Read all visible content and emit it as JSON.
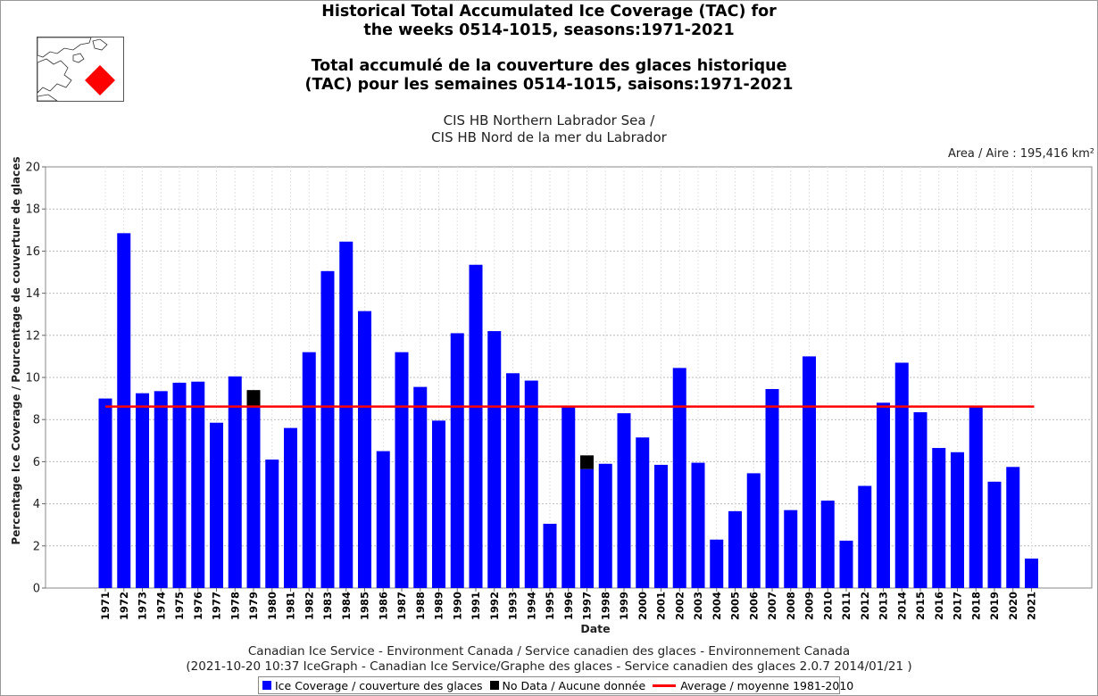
{
  "header": {
    "title_en_line1": "Historical Total Accumulated Ice Coverage (TAC) for",
    "title_en_line2": "the weeks 0514-1015, seasons:1971-2021",
    "title_fr_line1": "Total accumulé de la couverture des glaces historique",
    "title_fr_line2": "(TAC) pour les semaines 0514-1015, saisons:1971-2021",
    "subtitle_line1": "CIS HB Northern Labrador Sea /",
    "subtitle_line2": "CIS HB Nord de la mer du Labrador",
    "area_text": "Area / Aire : 195,416 km²"
  },
  "footer": {
    "line1": "Canadian Ice Service - Environment Canada / Service canadien des glaces - Environnement Canada",
    "line2": "(2021-10-20 10:37 IceGraph - Canadian Ice Service/Graphe des glaces - Service canadien des glaces 2.0.7 2014/01/21 )"
  },
  "legend": {
    "ice": "Ice Coverage / couverture des glaces",
    "nodata": "No Data / Aucune donnée",
    "average": "Average / moyenne 1981-2010"
  },
  "colors": {
    "ice": "#0000ff",
    "nodata": "#000000",
    "average": "#ff0000",
    "grid": "#bbbbbb",
    "map_marker": "#ff0000"
  },
  "chart_data": {
    "type": "bar",
    "xlabel": "Date",
    "ylabel": "Percentage Ice Coverage / Pourcentage de couverture de glaces",
    "ylim": [
      0,
      20
    ],
    "yticks": [
      0,
      2,
      4,
      6,
      8,
      10,
      12,
      14,
      16,
      18,
      20
    ],
    "grid": true,
    "categories": [
      "1971",
      "1972",
      "1973",
      "1974",
      "1975",
      "1976",
      "1977",
      "1978",
      "1979",
      "1980",
      "1981",
      "1982",
      "1983",
      "1984",
      "1985",
      "1986",
      "1987",
      "1988",
      "1989",
      "1990",
      "1991",
      "1992",
      "1993",
      "1994",
      "1995",
      "1996",
      "1997",
      "1998",
      "1999",
      "2000",
      "2001",
      "2002",
      "2003",
      "2004",
      "2005",
      "2006",
      "2007",
      "2008",
      "2009",
      "2010",
      "2011",
      "2012",
      "2013",
      "2014",
      "2015",
      "2016",
      "2017",
      "2018",
      "2019",
      "2020",
      "2021"
    ],
    "series": [
      {
        "name": "Ice Coverage / couverture des glaces",
        "values": [
          9.0,
          16.85,
          9.25,
          9.35,
          9.75,
          9.8,
          7.85,
          10.05,
          8.6,
          6.1,
          7.6,
          11.2,
          15.05,
          16.45,
          13.15,
          6.5,
          11.2,
          9.55,
          7.95,
          12.1,
          15.35,
          12.2,
          10.2,
          9.85,
          3.05,
          8.6,
          5.65,
          5.9,
          8.3,
          7.15,
          5.85,
          10.45,
          5.95,
          2.3,
          3.65,
          5.45,
          9.45,
          3.7,
          11.0,
          4.15,
          2.25,
          4.85,
          8.8,
          10.7,
          8.35,
          6.65,
          6.45,
          8.65,
          5.05,
          5.75,
          1.4
        ]
      },
      {
        "name": "No Data / Aucune donnée",
        "values": [
          0,
          0,
          0,
          0,
          0,
          0,
          0,
          0,
          0.8,
          0,
          0,
          0,
          0,
          0,
          0,
          0,
          0,
          0,
          0,
          0,
          0,
          0,
          0,
          0,
          0,
          0,
          0.65,
          0,
          0,
          0,
          0,
          0,
          0,
          0,
          0,
          0,
          0,
          0,
          0,
          0,
          0,
          0,
          0,
          0,
          0,
          0,
          0,
          0,
          0,
          0,
          0
        ]
      }
    ],
    "average": {
      "name": "Average / moyenne 1981-2010",
      "value": 8.62
    }
  }
}
